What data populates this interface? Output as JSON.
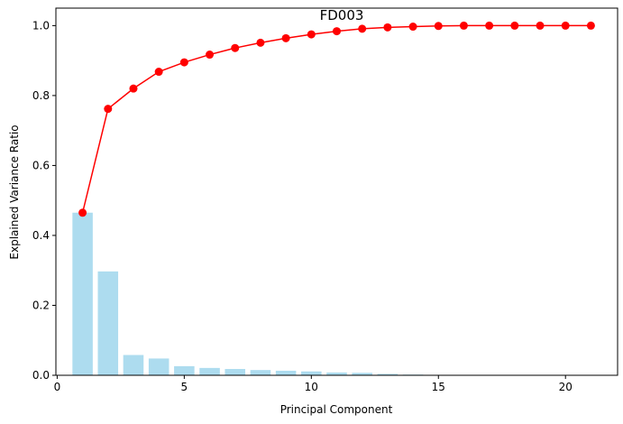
{
  "chart_data": {
    "type": "bar",
    "title": "FD003",
    "xlabel": "Principal Component",
    "ylabel": "Explained Variance Ratio",
    "xlim": [
      -0.05,
      22.05
    ],
    "ylim": [
      0.0,
      1.05
    ],
    "xticks": [
      0,
      5,
      10,
      15,
      20
    ],
    "yticks": [
      0.0,
      0.2,
      0.4,
      0.6,
      0.8,
      1.0
    ],
    "xtick_labels": [
      "0",
      "5",
      "10",
      "15",
      "20"
    ],
    "ytick_labels": [
      "0.0",
      "0.2",
      "0.4",
      "0.6",
      "0.8",
      "1.0"
    ],
    "grid": false,
    "legend": "none",
    "x": [
      1,
      2,
      3,
      4,
      5,
      6,
      7,
      8,
      9,
      10,
      11,
      12,
      13,
      14,
      15,
      16,
      17,
      18,
      19,
      20,
      21
    ],
    "series": [
      {
        "kind": "bar",
        "color": "#ADDCEF",
        "values": [
          0.465,
          0.297,
          0.058,
          0.048,
          0.026,
          0.021,
          0.018,
          0.015,
          0.013,
          0.011,
          0.008,
          0.007,
          0.004,
          0.002,
          0.001,
          0.001,
          0.0,
          0.0,
          0.0,
          0.0,
          0.0
        ]
      },
      {
        "kind": "line",
        "color": "#FF0000",
        "marker": "circle",
        "values": [
          0.465,
          0.762,
          0.82,
          0.868,
          0.895,
          0.917,
          0.936,
          0.951,
          0.964,
          0.975,
          0.984,
          0.991,
          0.995,
          0.997,
          0.999,
          1.0,
          1.0,
          1.0,
          1.0,
          1.0,
          1.0
        ]
      }
    ]
  }
}
